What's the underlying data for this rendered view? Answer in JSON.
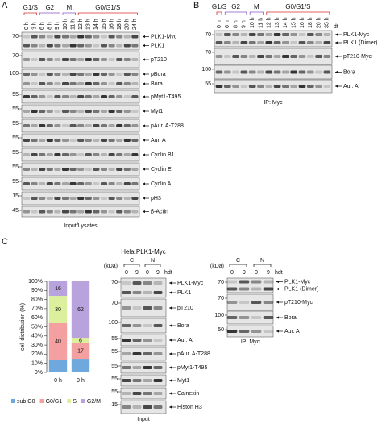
{
  "panel_a": {
    "label": "A",
    "phases": [
      "G1/S",
      "G2",
      "M",
      "G0/G1/S"
    ],
    "timepoints": [
      "0 h",
      "3 h",
      "6 h",
      "8 h",
      "9 h",
      "10 h",
      "11 h",
      "12 h",
      "13 h",
      "14 h",
      "15 h",
      "16 h",
      "18 h",
      "20 h",
      "24 h"
    ],
    "rows": [
      {
        "marker": 70,
        "labels": [
          "PLK1-Myc",
          "PLK1"
        ]
      },
      {
        "marker": 70,
        "labels": [
          "pT210"
        ]
      },
      {
        "marker": 100,
        "labels": [
          "pBora",
          "Bora"
        ]
      },
      {
        "marker": 55,
        "labels": [
          "pMyt1-T495"
        ]
      },
      {
        "marker": 55,
        "labels": [
          "Myt1"
        ]
      },
      {
        "marker": 55,
        "labels": [
          "pAur. A-T288"
        ]
      },
      {
        "marker": 55,
        "labels": [
          "Aur. A"
        ]
      },
      {
        "marker": 55,
        "labels": [
          "Cyclin B1"
        ]
      },
      {
        "marker": 55,
        "labels": [
          "Cyclin E"
        ]
      },
      {
        "marker": 55,
        "labels": [
          "Cyclin A"
        ]
      },
      {
        "marker": 15,
        "labels": [
          "pH3"
        ]
      },
      {
        "marker": 45,
        "labels": [
          "β-Actin"
        ]
      }
    ],
    "footer": "Input/Lysates"
  },
  "panel_b": {
    "label": "B",
    "phases": [
      "G1/S",
      "G2",
      "M",
      "G0/G1/S"
    ],
    "timepoints": [
      "0 h",
      "6 h",
      "8 h",
      "9 h",
      "10 h",
      "11 h",
      "12 h",
      "13 h",
      "14 h",
      "15 h",
      "16 h",
      "18 h",
      "20 h",
      "35 h"
    ],
    "suffix": "dt",
    "rows": [
      {
        "marker": 70,
        "labels": [
          "PLK1-Myc",
          "PLK1 (Dimer)"
        ]
      },
      {
        "marker": 70,
        "labels": [
          "pT210-Myc"
        ]
      },
      {
        "marker": 100,
        "labels": [
          "Bora"
        ]
      },
      {
        "marker": 55,
        "labels": [
          "Aur. A"
        ]
      }
    ],
    "footer": "IP: Myc"
  },
  "panel_c": {
    "label": "C",
    "title": "Hela:PLK1-Myc",
    "input": {
      "kda": "(kDa)",
      "groups": [
        "C",
        "N"
      ],
      "timepoints": [
        "0",
        "9",
        "0",
        "9"
      ],
      "suffix": "hdt",
      "rows": [
        {
          "marker": 70,
          "labels": [
            "PLK1-Myc",
            "PLK1"
          ]
        },
        {
          "marker": 70,
          "labels": [
            "pT210"
          ]
        },
        {
          "marker": 100,
          "labels": [
            "Bora"
          ]
        },
        {
          "marker": 55,
          "labels": [
            "Aur. A"
          ]
        },
        {
          "marker": 55,
          "labels": [
            "pAur. A-T288"
          ]
        },
        {
          "marker": 55,
          "labels": [
            "pMyt1-T495"
          ]
        },
        {
          "marker": 55,
          "labels": [
            "Myt1"
          ]
        },
        {
          "marker": 55,
          "labels": [
            "Calnexin"
          ]
        },
        {
          "marker": 15,
          "labels": [
            "Histon H3"
          ]
        }
      ],
      "footer": "Input"
    },
    "ip": {
      "kda": "(kDa)",
      "groups": [
        "C",
        "N"
      ],
      "timepoints": [
        "0",
        "9",
        "0",
        "9"
      ],
      "suffix": "hdt",
      "rows": [
        {
          "marker": 70,
          "labels": [
            "PLK1-Myc",
            "PLK1 (Dimer)"
          ]
        },
        {
          "marker": 70,
          "labels": [
            "pT210-Myc"
          ]
        },
        {
          "marker": 100,
          "labels": [
            "Bora"
          ]
        },
        {
          "marker": 50,
          "labels": [
            "Aur. A"
          ]
        }
      ],
      "footer": "IP: Myc"
    }
  },
  "chart_data": {
    "type": "bar",
    "stacked": true,
    "ylabel": "cell distribution (%)",
    "categories": [
      "0 h",
      "9 h"
    ],
    "series": [
      {
        "name": "sub G0",
        "color": "#6fa8dc",
        "values": [
          14,
          15
        ]
      },
      {
        "name": "G0/G1",
        "color": "#f4a0a0",
        "values": [
          40,
          17
        ],
        "value_labels": [
          "40",
          "17"
        ]
      },
      {
        "name": "S",
        "color": "#dcef9c",
        "values": [
          30,
          6
        ],
        "value_labels": [
          "30",
          "6"
        ]
      },
      {
        "name": "G2/M",
        "color": "#b9a3dc",
        "values": [
          16,
          62
        ],
        "value_labels": [
          "16",
          "62"
        ]
      }
    ],
    "ylim": [
      0,
      100
    ],
    "yticks": [
      {
        "value": 0,
        "label": "0%"
      },
      {
        "value": 10,
        "label": "10%"
      },
      {
        "value": 20,
        "label": "20%"
      },
      {
        "value": 30,
        "label": "30%"
      },
      {
        "value": 40,
        "label": "40%"
      },
      {
        "value": 50,
        "label": "50%"
      },
      {
        "value": 60,
        "label": "60%"
      },
      {
        "value": 70,
        "label": "70%"
      },
      {
        "value": 80,
        "label": "80%"
      },
      {
        "value": 90,
        "label": "90%"
      },
      {
        "value": 100,
        "label": "100%"
      }
    ],
    "legend": "bottom"
  }
}
